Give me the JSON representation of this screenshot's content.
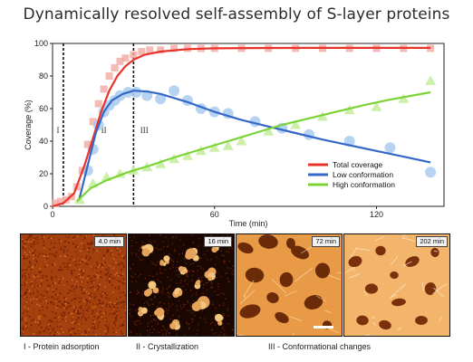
{
  "figure": {
    "title": "Dynamically resolved self-assembly of S-layer proteins"
  },
  "chart_data": {
    "type": "scatter",
    "xlabel": "Time (min)",
    "ylabel": "Coverage (%)",
    "xlim": [
      0,
      145
    ],
    "ylim": [
      0,
      100
    ],
    "x_ticks": [
      0,
      60,
      120
    ],
    "y_ticks": [
      0,
      20,
      40,
      60,
      80,
      100
    ],
    "grid": false,
    "legend": "bottom-right",
    "phase_boundaries": [
      4,
      30
    ],
    "phase_labels": [
      {
        "text": "I",
        "x": 2,
        "y": 45
      },
      {
        "text": "II",
        "x": 19,
        "y": 45
      },
      {
        "text": "III",
        "x": 34,
        "y": 45
      }
    ],
    "series": [
      {
        "name": "Total coverage",
        "color": "#e8332a",
        "marker_color": "#f4a9a2",
        "points": [
          [
            1,
            2
          ],
          [
            3,
            3
          ],
          [
            5,
            4
          ],
          [
            7,
            6
          ],
          [
            9,
            12
          ],
          [
            11,
            22
          ],
          [
            13,
            38
          ],
          [
            15,
            52
          ],
          [
            17,
            63
          ],
          [
            19,
            72
          ],
          [
            21,
            80
          ],
          [
            23,
            85
          ],
          [
            25,
            89
          ],
          [
            27,
            91
          ],
          [
            30,
            93
          ],
          [
            33,
            95
          ],
          [
            36,
            96
          ],
          [
            40,
            96
          ],
          [
            45,
            97
          ],
          [
            50,
            97
          ],
          [
            55,
            97
          ],
          [
            60,
            97
          ],
          [
            70,
            97
          ],
          [
            80,
            97
          ],
          [
            90,
            97
          ],
          [
            100,
            97
          ],
          [
            110,
            97
          ],
          [
            120,
            97
          ],
          [
            130,
            97
          ],
          [
            140,
            97
          ]
        ],
        "fit": [
          [
            0,
            0
          ],
          [
            4,
            2
          ],
          [
            8,
            8
          ],
          [
            12,
            26
          ],
          [
            15,
            42
          ],
          [
            18,
            58
          ],
          [
            21,
            71
          ],
          [
            24,
            80
          ],
          [
            27,
            86
          ],
          [
            30,
            90
          ],
          [
            34,
            93
          ],
          [
            40,
            95
          ],
          [
            50,
            96.5
          ],
          [
            60,
            97
          ],
          [
            80,
            97.2
          ],
          [
            100,
            97.3
          ],
          [
            140,
            97.3
          ]
        ]
      },
      {
        "name": "Low conformation",
        "color": "#3567c6",
        "marker_color": "#a9cdf0",
        "points": [
          [
            13,
            22
          ],
          [
            15,
            35
          ],
          [
            17,
            50
          ],
          [
            19,
            58
          ],
          [
            21,
            62
          ],
          [
            23,
            65
          ],
          [
            25,
            68
          ],
          [
            28,
            70
          ],
          [
            31,
            70
          ],
          [
            35,
            68
          ],
          [
            40,
            66
          ],
          [
            45,
            71
          ],
          [
            50,
            65
          ],
          [
            55,
            60
          ],
          [
            60,
            58
          ],
          [
            65,
            57
          ],
          [
            75,
            52
          ],
          [
            85,
            48
          ],
          [
            95,
            44
          ],
          [
            110,
            40
          ],
          [
            125,
            36
          ],
          [
            140,
            21
          ]
        ],
        "fit": [
          [
            10,
            5
          ],
          [
            13,
            25
          ],
          [
            16,
            45
          ],
          [
            19,
            58
          ],
          [
            22,
            65
          ],
          [
            26,
            69
          ],
          [
            30,
            71
          ],
          [
            35,
            70.5
          ],
          [
            40,
            69
          ],
          [
            50,
            64
          ],
          [
            60,
            58
          ],
          [
            70,
            53
          ],
          [
            80,
            49
          ],
          [
            90,
            45
          ],
          [
            100,
            41
          ],
          [
            110,
            37.5
          ],
          [
            120,
            34
          ],
          [
            130,
            30.5
          ],
          [
            140,
            27
          ]
        ]
      },
      {
        "name": "High conformation",
        "color": "#7cd336",
        "marker_color": "#c6eda0",
        "points": [
          [
            10,
            4
          ],
          [
            15,
            14
          ],
          [
            20,
            18
          ],
          [
            25,
            20
          ],
          [
            30,
            22
          ],
          [
            35,
            24
          ],
          [
            40,
            26
          ],
          [
            45,
            29
          ],
          [
            50,
            31
          ],
          [
            55,
            34
          ],
          [
            60,
            36
          ],
          [
            65,
            37
          ],
          [
            70,
            40
          ],
          [
            80,
            46
          ],
          [
            90,
            50
          ],
          [
            100,
            55
          ],
          [
            110,
            59
          ],
          [
            120,
            61
          ],
          [
            130,
            66
          ],
          [
            140,
            77
          ]
        ],
        "fit": [
          [
            9,
            3
          ],
          [
            14,
            11
          ],
          [
            20,
            16
          ],
          [
            28,
            21
          ],
          [
            36,
            25
          ],
          [
            45,
            30
          ],
          [
            55,
            35
          ],
          [
            65,
            40
          ],
          [
            75,
            45
          ],
          [
            85,
            50
          ],
          [
            95,
            54
          ],
          [
            105,
            58
          ],
          [
            115,
            62
          ],
          [
            125,
            65.5
          ],
          [
            140,
            70
          ]
        ]
      }
    ]
  },
  "micrographs": [
    {
      "time": "4.0 min",
      "theme": "adsorption"
    },
    {
      "time": "16 min",
      "theme": "crystal"
    },
    {
      "time": "72 min",
      "theme": "conform"
    },
    {
      "time": "202 min",
      "theme": "late"
    }
  ],
  "captions": {
    "phase1": "I - Protein adsorption",
    "phase2": "II - Crystallization",
    "phase3": "III - Conformational changes"
  }
}
